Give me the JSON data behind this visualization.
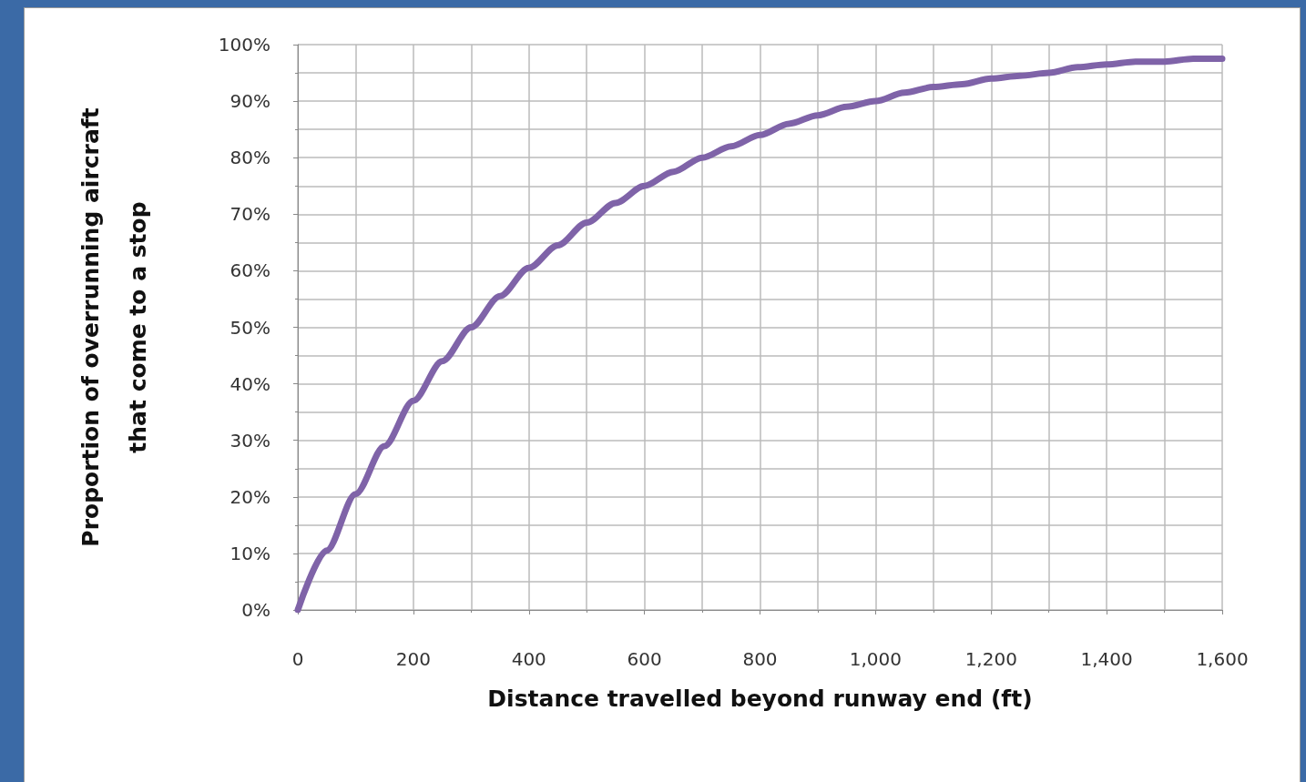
{
  "chart_data": {
    "type": "line",
    "xlabel": "Distance travelled beyond runway end (ft)",
    "ylabel": "Proportion of overrunning aircraft\nthat come to a stop",
    "x": [
      0,
      50,
      100,
      150,
      200,
      250,
      300,
      350,
      400,
      450,
      500,
      550,
      600,
      650,
      700,
      750,
      800,
      850,
      900,
      950,
      1000,
      1050,
      1100,
      1150,
      1200,
      1250,
      1300,
      1350,
      1400,
      1450,
      1500,
      1550,
      1600
    ],
    "series": [
      {
        "color": "#7f63a8",
        "values": [
          0,
          10.5,
          20.5,
          29,
          37,
          44,
          50,
          55.5,
          60.5,
          64.5,
          68.5,
          72,
          75,
          77.5,
          80,
          82,
          84,
          86,
          87.5,
          89,
          90,
          91.5,
          92.5,
          93,
          94,
          94.5,
          95,
          96,
          96.5,
          97,
          97,
          97.5,
          97.5
        ]
      }
    ],
    "xlim": [
      0,
      1600
    ],
    "xticks": [
      0,
      200,
      400,
      600,
      800,
      {
        "value": 1000,
        "label": "1,000"
      },
      {
        "value": 1200,
        "label": "1,200"
      },
      {
        "value": 1400,
        "label": "1,400"
      },
      {
        "value": 1600,
        "label": "1,600"
      }
    ],
    "ylim": [
      0,
      100
    ],
    "yticks": [
      {
        "value": 0,
        "label": "0%"
      },
      {
        "value": 10,
        "label": "10%"
      },
      {
        "value": 20,
        "label": "20%"
      },
      {
        "value": 30,
        "label": "30%"
      },
      {
        "value": 40,
        "label": "40%"
      },
      {
        "value": 50,
        "label": "50%"
      },
      {
        "value": 60,
        "label": "60%"
      },
      {
        "value": 70,
        "label": "70%"
      },
      {
        "value": 80,
        "label": "80%"
      },
      {
        "value": 90,
        "label": "90%"
      },
      {
        "value": 100,
        "label": "100%"
      }
    ],
    "grid": true,
    "marker": "none",
    "line_style": "solid"
  }
}
